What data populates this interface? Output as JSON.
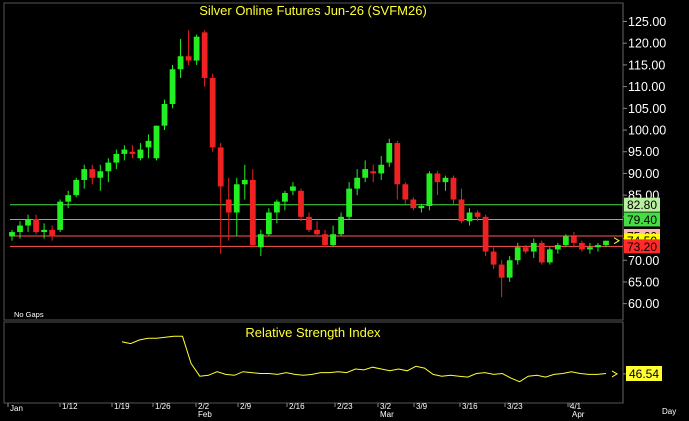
{
  "chart_data": [
    {
      "type": "candlestick",
      "title": "Silver Online Futures Jun-26 (SVFM26)",
      "note": "No Gaps",
      "y_ticks": [
        "125.00",
        "120.00",
        "115.00",
        "110.00",
        "105.00",
        "100.00",
        "95.00",
        "90.00",
        "85.00",
        "80.00",
        "75.00",
        "70.00",
        "65.00",
        "60.00"
      ],
      "ylim": [
        59,
        126.5
      ],
      "x_ticks": [
        "Jan",
        "1/12",
        "1/19",
        "1/26",
        "2/2",
        "Feb",
        "2/9",
        "2/16",
        "2/23",
        "3/2",
        "Mar",
        "3/9",
        "3/16",
        "3/23",
        "4/1",
        "Apr"
      ],
      "colors": {
        "up": "#22ee22",
        "down": "#ee2222",
        "up_level": "#44dd44",
        "down_level": "#ff5555"
      },
      "levels": [
        {
          "label": "82.80",
          "value": 82.8,
          "line": true,
          "bg": "#b9f0a0",
          "fg": "#000000"
        },
        {
          "label": "79.40",
          "value": 79.4,
          "line": true,
          "bg": "#44dd44",
          "fg": "#000000"
        },
        {
          "label": "75.60",
          "value": 75.6,
          "line": true,
          "bg": "#ffb6b6",
          "fg": "#000000"
        },
        {
          "label": "74.50",
          "value": 74.5,
          "line": false,
          "bg": "#ffff00",
          "fg": "#000000"
        },
        {
          "label": "73.20",
          "value": 73.2,
          "line": true,
          "bg": "#ff2a2a",
          "fg": "#000000"
        }
      ],
      "candles": [
        [
          75.5,
          77,
          74.5,
          76.5
        ],
        [
          76.5,
          79,
          75,
          78
        ],
        [
          78,
          80.5,
          76.5,
          79.5
        ],
        [
          79.5,
          80.5,
          76,
          76.5
        ],
        [
          76.5,
          78.5,
          75,
          77
        ],
        [
          77,
          78,
          74.5,
          75.5
        ],
        [
          77,
          84,
          76.5,
          83.5
        ],
        [
          83.5,
          86,
          82,
          85
        ],
        [
          85,
          89,
          84.5,
          88.5
        ],
        [
          88.5,
          92,
          86.5,
          91
        ],
        [
          91,
          92,
          87.5,
          89
        ],
        [
          89,
          92,
          86,
          90.5
        ],
        [
          90.5,
          93.5,
          88,
          92.5
        ],
        [
          92.5,
          95.5,
          91,
          94.5
        ],
        [
          94.5,
          96.5,
          93,
          95.5
        ],
        [
          95,
          96.5,
          93.5,
          94.5
        ],
        [
          93.5,
          97,
          93,
          95.5
        ],
        [
          96,
          99,
          93.5,
          97.5
        ],
        [
          93.5,
          101,
          93,
          101
        ],
        [
          101,
          107,
          100,
          106
        ],
        [
          106,
          115,
          105,
          114
        ],
        [
          114,
          121,
          112,
          117
        ],
        [
          117,
          123,
          115,
          116
        ],
        [
          116,
          122,
          115,
          121.5
        ],
        [
          122.5,
          123,
          110,
          112
        ],
        [
          112,
          113,
          95,
          96
        ],
        [
          96,
          97,
          71.5,
          87
        ],
        [
          84,
          89,
          74.5,
          81
        ],
        [
          81,
          89,
          75.5,
          87.5
        ],
        [
          87.5,
          92,
          84,
          88.5
        ],
        [
          88.5,
          91,
          73,
          73.5
        ],
        [
          73,
          77,
          71,
          76
        ],
        [
          76,
          82,
          75.5,
          81
        ],
        [
          81,
          84,
          78.5,
          83.5
        ],
        [
          83.5,
          86,
          81.5,
          85.5
        ],
        [
          86,
          88,
          85,
          87
        ],
        [
          86,
          86.5,
          79,
          80
        ],
        [
          80,
          81,
          76.5,
          77
        ],
        [
          77,
          79,
          75.5,
          76
        ],
        [
          76,
          77,
          73,
          73.5
        ],
        [
          73.5,
          78,
          73,
          76
        ],
        [
          76,
          81,
          75.5,
          80
        ],
        [
          80,
          88,
          79.5,
          86.5
        ],
        [
          86.5,
          91,
          85,
          89
        ],
        [
          89,
          93,
          88,
          91
        ],
        [
          90.5,
          92,
          88,
          90
        ],
        [
          90,
          94,
          88.5,
          92
        ],
        [
          92.5,
          98,
          91.5,
          97
        ],
        [
          97,
          97.5,
          84,
          87.5
        ],
        [
          87.5,
          88,
          83,
          84
        ],
        [
          84,
          84.5,
          81.5,
          82
        ],
        [
          82,
          83,
          81,
          82.5
        ],
        [
          82.5,
          90.5,
          81.5,
          90
        ],
        [
          90,
          90.5,
          85,
          88
        ],
        [
          88,
          89.5,
          86,
          89
        ],
        [
          89,
          89.5,
          83,
          84
        ],
        [
          84,
          86.5,
          78.5,
          79
        ],
        [
          79,
          82,
          78,
          81
        ],
        [
          81,
          81.5,
          79,
          80
        ],
        [
          80,
          80.5,
          71,
          72
        ],
        [
          72,
          73,
          68,
          69
        ],
        [
          69,
          70,
          61.5,
          66
        ],
        [
          66,
          71,
          65,
          70
        ],
        [
          70,
          74,
          69,
          73
        ],
        [
          73,
          73.5,
          71.5,
          72
        ],
        [
          72,
          75,
          70.5,
          74
        ],
        [
          74,
          74.5,
          69,
          69.5
        ],
        [
          69.5,
          73,
          69,
          72.5
        ],
        [
          72.5,
          74,
          71.5,
          73.5
        ],
        [
          73.5,
          76,
          73,
          75.5
        ],
        [
          75.5,
          76.5,
          73,
          74
        ],
        [
          74,
          74.5,
          72,
          72.5
        ],
        [
          72.5,
          74,
          71.5,
          73
        ],
        [
          73,
          74,
          72,
          73.5
        ],
        [
          73.5,
          74.5,
          73,
          74.5
        ]
      ]
    },
    {
      "type": "line",
      "title": "Relative Strength Index",
      "current_label": "46.54",
      "current_value": 46.54,
      "ylim": [
        20,
        95
      ],
      "values": [
        82,
        80,
        84,
        86,
        86,
        87,
        88,
        88,
        58,
        44,
        45,
        49,
        46,
        45,
        49,
        48,
        47,
        47,
        46,
        48,
        46,
        45,
        46,
        48,
        48,
        49,
        48,
        52,
        51,
        54,
        52,
        50,
        52,
        50,
        55,
        53,
        46,
        44,
        45,
        44,
        43,
        47,
        48,
        46,
        47,
        42,
        38,
        44,
        45,
        43,
        46,
        47,
        49,
        47,
        46,
        46,
        47
      ]
    }
  ]
}
